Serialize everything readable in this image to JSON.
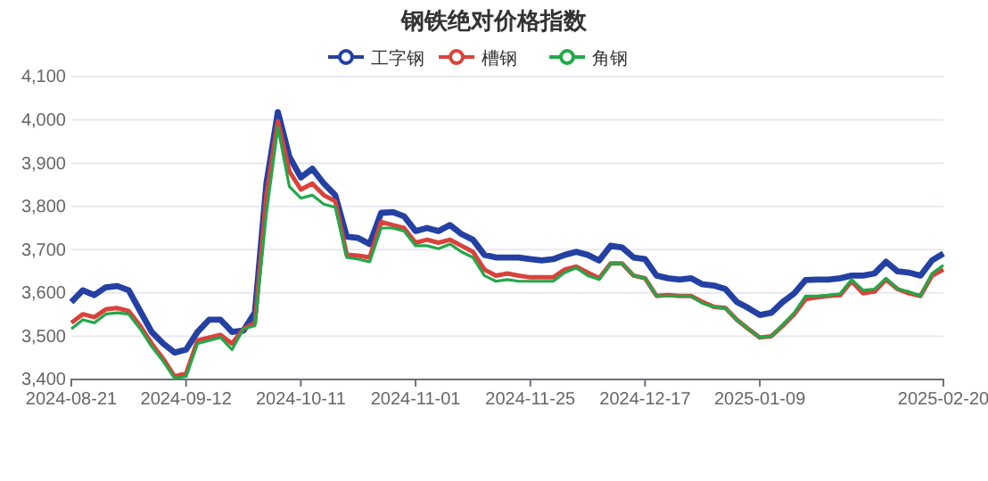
{
  "chart_data": {
    "type": "line",
    "title": "钢铁绝对价格指数",
    "categories": [
      "2024-08-21",
      null,
      null,
      null,
      null,
      null,
      null,
      null,
      null,
      null,
      "2024-09-12",
      null,
      null,
      null,
      null,
      null,
      null,
      null,
      null,
      null,
      "2024-10-11",
      null,
      null,
      null,
      null,
      null,
      null,
      null,
      null,
      null,
      "2024-11-01",
      null,
      null,
      null,
      null,
      null,
      null,
      null,
      null,
      null,
      "2024-11-25",
      null,
      null,
      null,
      null,
      null,
      null,
      null,
      null,
      null,
      "2024-12-17",
      null,
      null,
      null,
      null,
      null,
      null,
      null,
      null,
      null,
      "2025-01-09",
      null,
      null,
      null,
      null,
      null,
      null,
      null,
      null,
      null,
      null,
      null,
      null,
      null,
      null,
      null,
      "2025-02-20"
    ],
    "series": [
      {
        "name": "工字钢",
        "color": "#2440a3",
        "values": [
          3579,
          3606,
          3595,
          3613,
          3616,
          3606,
          3558,
          3510,
          3483,
          3462,
          3469,
          3510,
          3538,
          3538,
          3510,
          3513,
          3555,
          3853,
          4018,
          3915,
          3867,
          3887,
          3853,
          3826,
          3730,
          3727,
          3713,
          3785,
          3787,
          3777,
          3743,
          3750,
          3743,
          3757,
          3736,
          3723,
          3688,
          3682,
          3682,
          3682,
          3678,
          3675,
          3678,
          3688,
          3695,
          3688,
          3675,
          3709,
          3705,
          3682,
          3678,
          3640,
          3634,
          3631,
          3634,
          3620,
          3617,
          3609,
          3579,
          3565,
          3549,
          3554,
          3579,
          3599,
          3630,
          3631,
          3631,
          3634,
          3640,
          3640,
          3645,
          3672,
          3650,
          3647,
          3640,
          3675,
          3691
        ]
      },
      {
        "name": "槽钢",
        "color": "#d9423b",
        "values": [
          3531,
          3551,
          3544,
          3562,
          3565,
          3558,
          3524,
          3483,
          3448,
          3407,
          3414,
          3490,
          3497,
          3503,
          3483,
          3517,
          3531,
          3826,
          3997,
          3881,
          3839,
          3853,
          3826,
          3812,
          3688,
          3686,
          3682,
          3764,
          3757,
          3750,
          3716,
          3723,
          3716,
          3723,
          3709,
          3695,
          3654,
          3640,
          3645,
          3640,
          3636,
          3636,
          3636,
          3654,
          3661,
          3647,
          3634,
          3668,
          3668,
          3640,
          3634,
          3593,
          3595,
          3593,
          3593,
          3579,
          3568,
          3565,
          3538,
          3517,
          3497,
          3500,
          3524,
          3551,
          3586,
          3590,
          3593,
          3595,
          3627,
          3599,
          3603,
          3631,
          3609,
          3599,
          3593,
          3640,
          3654
        ]
      },
      {
        "name": "角钢",
        "color": "#22a84a",
        "values": [
          3517,
          3538,
          3531,
          3551,
          3554,
          3551,
          3517,
          3476,
          3442,
          3403,
          3407,
          3483,
          3490,
          3497,
          3469,
          3517,
          3524,
          3784,
          3983,
          3846,
          3819,
          3826,
          3805,
          3798,
          3682,
          3678,
          3672,
          3750,
          3750,
          3743,
          3709,
          3709,
          3702,
          3713,
          3695,
          3682,
          3640,
          3627,
          3631,
          3627,
          3627,
          3627,
          3627,
          3647,
          3658,
          3640,
          3631,
          3668,
          3668,
          3640,
          3634,
          3593,
          3593,
          3593,
          3593,
          3576,
          3568,
          3565,
          3538,
          3517,
          3497,
          3500,
          3527,
          3554,
          3593,
          3593,
          3595,
          3598,
          3631,
          3606,
          3609,
          3634,
          3609,
          3603,
          3593,
          3645,
          3664
        ]
      }
    ],
    "ylim": [
      3400,
      4100
    ],
    "yticks": [
      {
        "value": 3400,
        "label": "3,400"
      },
      {
        "value": 3500,
        "label": "3,500"
      },
      {
        "value": 3600,
        "label": "3,600"
      },
      {
        "value": 3700,
        "label": "3,700"
      },
      {
        "value": 3800,
        "label": "3,800"
      },
      {
        "value": 3900,
        "label": "3,900"
      },
      {
        "value": 4000,
        "label": "4,000"
      },
      {
        "value": 4100,
        "label": "4,100"
      }
    ],
    "grid": "y",
    "legend": "top",
    "marker": "none",
    "line_style": "solid"
  }
}
